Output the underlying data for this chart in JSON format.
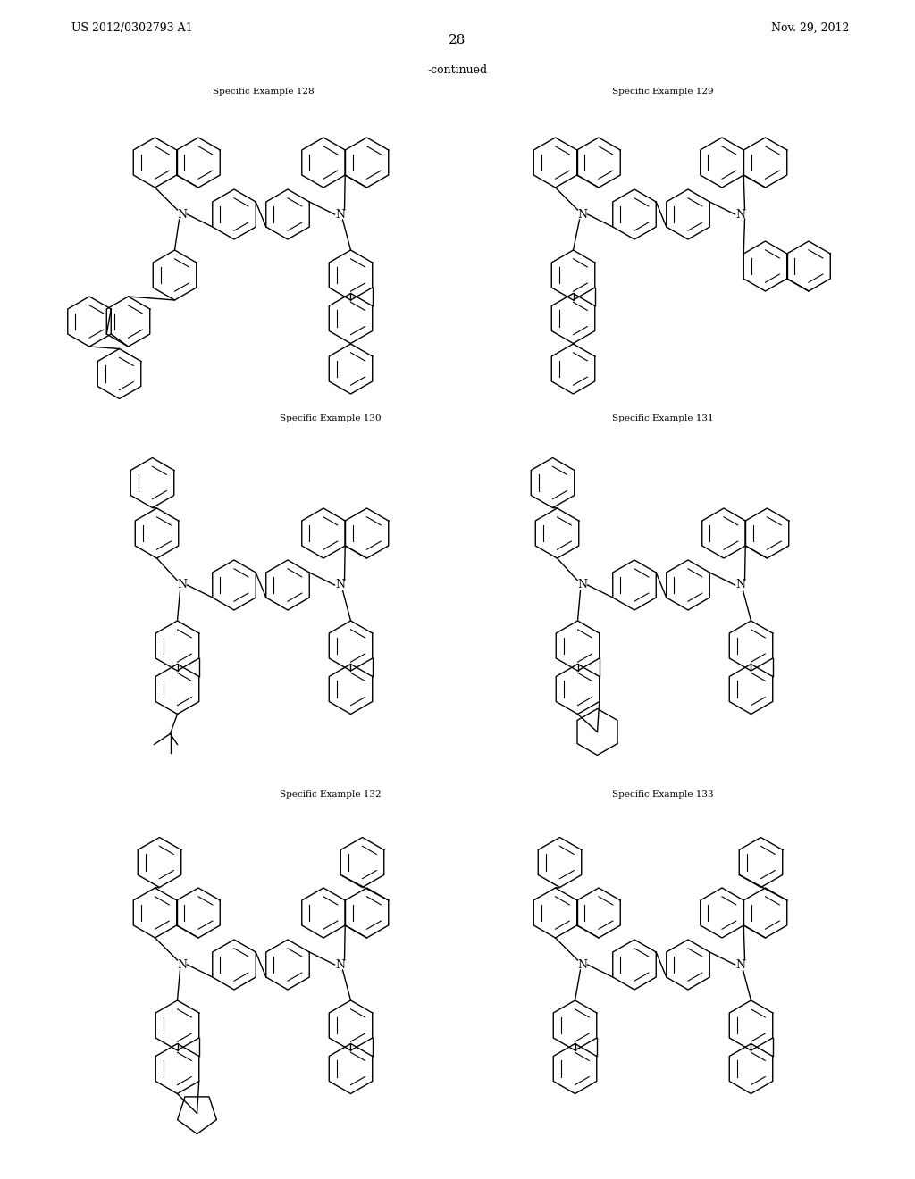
{
  "page_number": "28",
  "patent_number": "US 2012/0302793 A1",
  "patent_date": "Nov. 29, 2012",
  "continued_label": "-continued",
  "background_color": "#ffffff",
  "text_color": "#000000",
  "hex_size": 28,
  "lw": 1.0
}
